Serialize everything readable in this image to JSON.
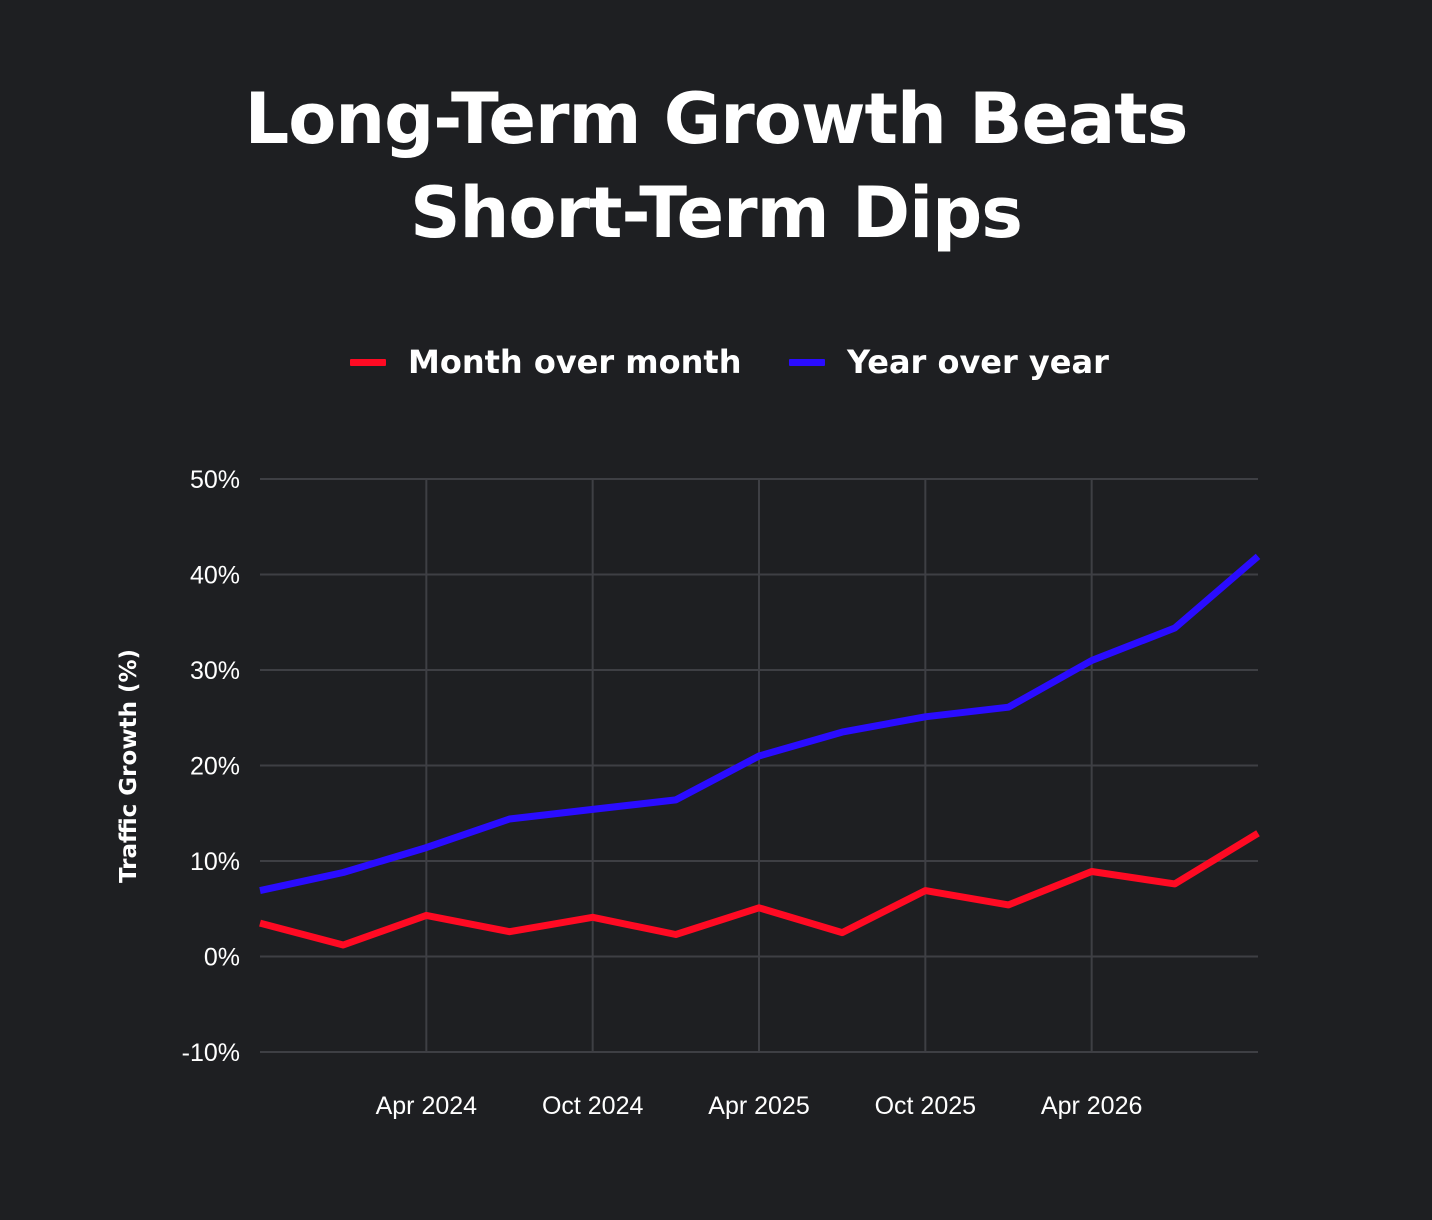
{
  "title": {
    "line1": "Long-Term Growth Beats",
    "line2": "Short-Term Dips"
  },
  "legend": [
    {
      "label": "Month over month",
      "color": "#ff0a23"
    },
    {
      "label": "Year over year",
      "color": "#2a0cff"
    }
  ],
  "chart_data": {
    "type": "line",
    "title": "Long-Term Growth Beats Short-Term Dips",
    "xlabel": "",
    "ylabel": "Traffic Growth (%)",
    "ylim": [
      -10,
      50
    ],
    "y_ticks": [
      50,
      40,
      30,
      20,
      10,
      0,
      -10
    ],
    "y_tick_labels": [
      "50%",
      "40%",
      "30%",
      "20%",
      "10%",
      "0%",
      "-10%"
    ],
    "x": [
      "Oct 2023",
      "Jan 2024",
      "Apr 2024",
      "Jul 2024",
      "Oct 2024",
      "Jan 2025",
      "Apr 2025",
      "Jul 2025",
      "Oct 2025",
      "Jan 2026",
      "Apr 2026",
      "Jul 2026",
      "Oct 2026"
    ],
    "x_tick_labels": [
      "Apr 2024",
      "Oct 2024",
      "Apr 2025",
      "Oct 2025",
      "Apr 2026"
    ],
    "x_tick_positions": [
      2,
      4,
      6,
      8,
      10
    ],
    "grid": true,
    "legend_position": "top-center",
    "series": [
      {
        "name": "Month over month",
        "color": "#ff0a23",
        "values": [
          3.5,
          1.2,
          4.3,
          2.6,
          4.1,
          2.3,
          5.1,
          2.5,
          6.9,
          5.4,
          8.9,
          7.6,
          12.9
        ]
      },
      {
        "name": "Year over year",
        "color": "#2a0cff",
        "values": [
          6.9,
          8.8,
          11.4,
          14.4,
          15.4,
          16.4,
          21.0,
          23.5,
          25.1,
          26.1,
          31.0,
          34.4,
          41.9
        ]
      }
    ]
  }
}
